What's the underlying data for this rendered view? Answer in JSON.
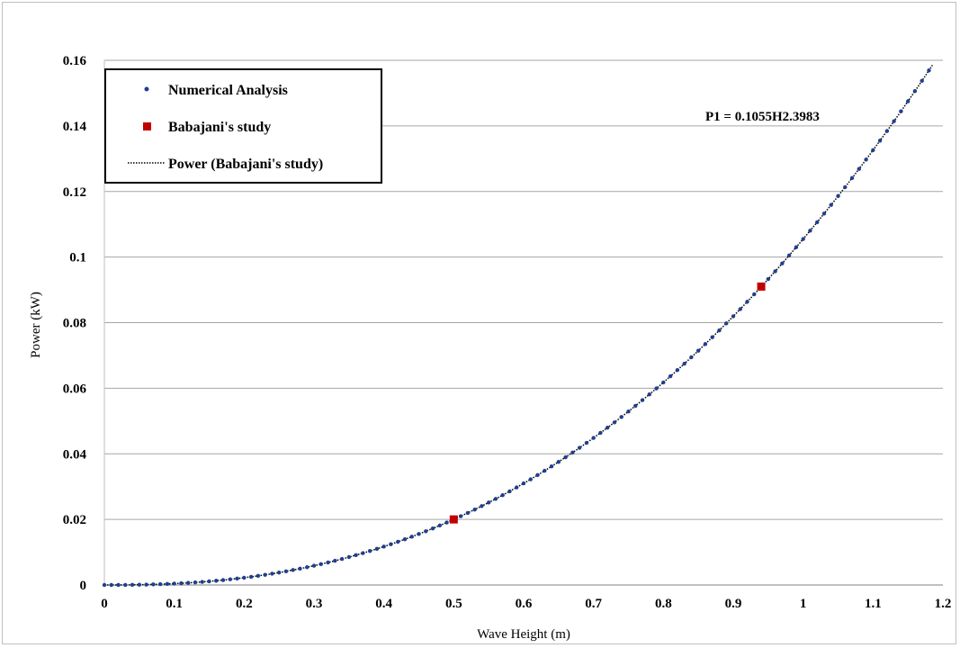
{
  "chart_data": {
    "type": "scatter",
    "xlabel": "Wave Height (m)",
    "ylabel": "Power (kW)",
    "xlim": [
      0,
      1.2
    ],
    "ylim": [
      0,
      0.16
    ],
    "x_ticks": [
      "0",
      "0.1",
      "0.2",
      "0.3",
      "0.4",
      "0.5",
      "0.6",
      "0.7",
      "0.8",
      "0.9",
      "1",
      "1.1",
      "1.2"
    ],
    "y_ticks": [
      "0",
      "0.02",
      "0.04",
      "0.06",
      "0.08",
      "0.1",
      "0.12",
      "0.14",
      "0.16"
    ],
    "grid": "horizontal",
    "legend_position": "top-left",
    "annotation": "P1 = 0.1055H2.3983",
    "series": [
      {
        "name": "Numerical Analysis",
        "marker": "dot",
        "color": "#1f3f8f",
        "fit": {
          "coefficient": 0.1055,
          "exponent": 2.3983
        },
        "x_start": 0.0,
        "x_end": 1.175,
        "x_step": 0.01
      },
      {
        "name": "Babajani's study",
        "marker": "square",
        "color": "#c00000",
        "points": [
          {
            "x": 0.5,
            "y": 0.02
          },
          {
            "x": 0.94,
            "y": 0.091
          }
        ]
      },
      {
        "name": "Power (Babajani's study)",
        "marker": "dotted-line",
        "color": "#000000",
        "fit": {
          "coefficient": 0.1055,
          "exponent": 2.3983
        }
      }
    ]
  }
}
